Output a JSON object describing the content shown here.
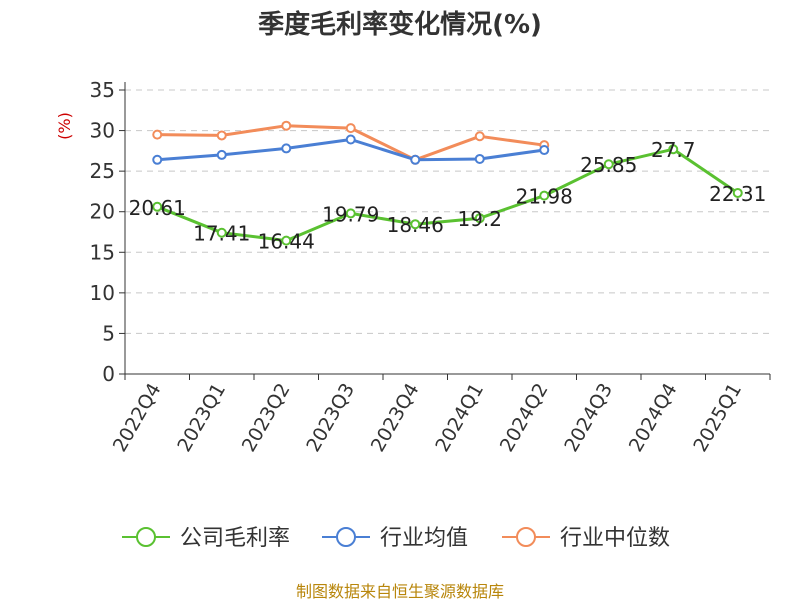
{
  "chart_data": {
    "type": "line",
    "title": "季度毛利率变化情况(%)",
    "ylabel": "(%)",
    "xlabel": "",
    "ylim": [
      0,
      35
    ],
    "yticks": [
      0,
      5,
      10,
      15,
      20,
      25,
      30,
      35
    ],
    "grid": true,
    "legend_position": "bottom",
    "categories": [
      "2022Q4",
      "2023Q1",
      "2023Q2",
      "2023Q3",
      "2023Q4",
      "2024Q1",
      "2024Q2",
      "2024Q3",
      "2024Q4",
      "2025Q1"
    ],
    "series": [
      {
        "name": "公司毛利率",
        "color": "#5ac131",
        "values": [
          20.61,
          17.41,
          16.44,
          19.79,
          18.46,
          19.2,
          21.98,
          25.85,
          27.7,
          22.31
        ],
        "labels": [
          "20.61",
          "17.41",
          "16.44",
          "19.79",
          "18.46",
          "19.2",
          "21.98",
          "25.85",
          "27.7",
          "22.31"
        ]
      },
      {
        "name": "行业均值",
        "color": "#4a7fd4",
        "values": [
          26.4,
          27.0,
          27.8,
          28.9,
          26.4,
          26.5,
          27.6,
          null,
          null,
          null
        ]
      },
      {
        "name": "行业中位数",
        "color": "#f28c5a",
        "values": [
          29.5,
          29.4,
          30.6,
          30.3,
          26.4,
          29.3,
          28.2,
          null,
          null,
          null
        ]
      }
    ]
  },
  "source": "制图数据来自恒生聚源数据库"
}
